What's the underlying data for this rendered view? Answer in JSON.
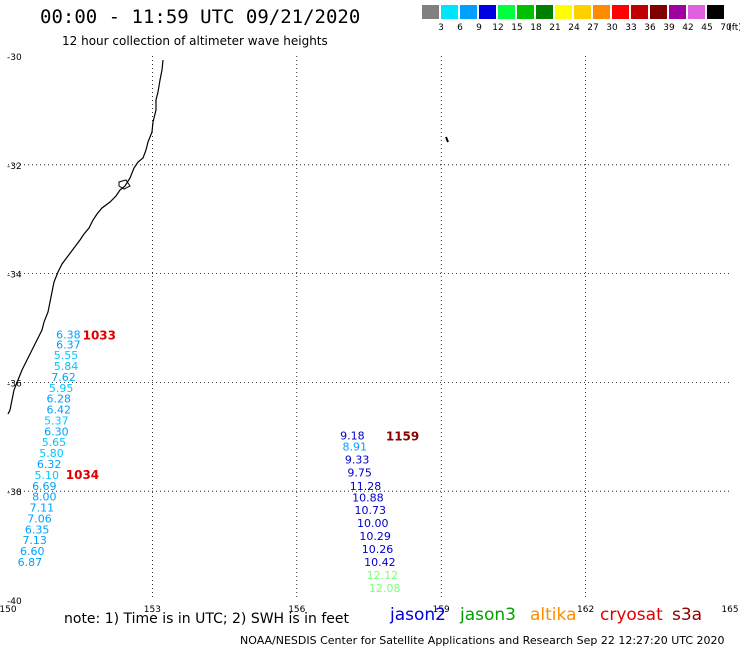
{
  "title": "00:00 - 11:59 UTC 09/21/2020",
  "subtitle": "12 hour collection of altimeter wave heights",
  "legend": {
    "unit": "(ft)",
    "bins": [
      {
        "label": "3",
        "color": "#808080"
      },
      {
        "label": "6",
        "color": "#00e5ff"
      },
      {
        "label": "9",
        "color": "#00a0ff"
      },
      {
        "label": "12",
        "color": "#0000e0"
      },
      {
        "label": "15",
        "color": "#00ff40"
      },
      {
        "label": "18",
        "color": "#00c000"
      },
      {
        "label": "21",
        "color": "#008000"
      },
      {
        "label": "24",
        "color": "#ffff00"
      },
      {
        "label": "27",
        "color": "#ffd000"
      },
      {
        "label": "30",
        "color": "#ff8c00"
      },
      {
        "label": "33",
        "color": "#ff0000"
      },
      {
        "label": "36",
        "color": "#c00000"
      },
      {
        "label": "39",
        "color": "#800000"
      },
      {
        "label": "42",
        "color": "#a000a0"
      },
      {
        "label": "45",
        "color": "#e060e0"
      },
      {
        "label": "70",
        "color": "#000000"
      }
    ]
  },
  "axes": {
    "lat_ticks": [
      "-30",
      "-32",
      "-34",
      "-36",
      "-38",
      "-40"
    ],
    "lon_ticks": [
      "150",
      "153",
      "156",
      "159",
      "162",
      "165"
    ]
  },
  "map": {
    "lon_min": 150,
    "lon_max": 165,
    "lat_top": -30,
    "lat_bottom": -40
  },
  "tracks": [
    {
      "name": "track-west",
      "time_labels": [
        {
          "text": "1033",
          "lon": 151.55,
          "lat": -35.12,
          "color": "#e00000"
        },
        {
          "text": "1034",
          "lon": 151.2,
          "lat": -37.68,
          "color": "#e00000"
        }
      ],
      "points": [
        {
          "v": "6.38",
          "lon": 151.0,
          "lat": -35.12,
          "color": "#00a0ff"
        },
        {
          "v": "6.37",
          "lon": 151.0,
          "lat": -35.3,
          "color": "#00a0ff"
        },
        {
          "v": "5.55",
          "lon": 150.95,
          "lat": -35.5,
          "color": "#00c8ff"
        },
        {
          "v": "5.84",
          "lon": 150.95,
          "lat": -35.7,
          "color": "#00c8ff"
        },
        {
          "v": "7.62",
          "lon": 150.9,
          "lat": -35.9,
          "color": "#00a0ff"
        },
        {
          "v": "5.95",
          "lon": 150.85,
          "lat": -36.1,
          "color": "#00c8ff"
        },
        {
          "v": "6.28",
          "lon": 150.8,
          "lat": -36.3,
          "color": "#00a0ff"
        },
        {
          "v": "6.42",
          "lon": 150.8,
          "lat": -36.5,
          "color": "#00a0ff"
        },
        {
          "v": "5.37",
          "lon": 150.75,
          "lat": -36.7,
          "color": "#00c8ff"
        },
        {
          "v": "6.30",
          "lon": 150.75,
          "lat": -36.9,
          "color": "#00a0ff"
        },
        {
          "v": "5.65",
          "lon": 150.7,
          "lat": -37.1,
          "color": "#00c8ff"
        },
        {
          "v": "5.80",
          "lon": 150.65,
          "lat": -37.3,
          "color": "#00c8ff"
        },
        {
          "v": "6.32",
          "lon": 150.6,
          "lat": -37.5,
          "color": "#00a0ff"
        },
        {
          "v": "5.10",
          "lon": 150.55,
          "lat": -37.7,
          "color": "#00c8ff"
        },
        {
          "v": "6.69",
          "lon": 150.5,
          "lat": -37.9,
          "color": "#00a0ff"
        },
        {
          "v": "8.00",
          "lon": 150.5,
          "lat": -38.1,
          "color": "#00a0ff"
        },
        {
          "v": "7.11",
          "lon": 150.45,
          "lat": -38.3,
          "color": "#00a0ff"
        },
        {
          "v": "7.06",
          "lon": 150.4,
          "lat": -38.5,
          "color": "#00a0ff"
        },
        {
          "v": "6.35",
          "lon": 150.35,
          "lat": -38.7,
          "color": "#00a0ff"
        },
        {
          "v": "7.13",
          "lon": 150.3,
          "lat": -38.9,
          "color": "#00a0ff"
        },
        {
          "v": "6.60",
          "lon": 150.25,
          "lat": -39.1,
          "color": "#00a0ff"
        },
        {
          "v": "6.87",
          "lon": 150.2,
          "lat": -39.3,
          "color": "#00a0ff"
        }
      ]
    },
    {
      "name": "track-east",
      "time_labels": [
        {
          "text": "1159",
          "lon": 157.85,
          "lat": -36.98,
          "color": "#8b0000"
        }
      ],
      "points": [
        {
          "v": "9.18",
          "lon": 156.9,
          "lat": -36.98,
          "color": "#0000c8"
        },
        {
          "v": "8.91",
          "lon": 156.95,
          "lat": -37.18,
          "color": "#00a0ff"
        },
        {
          "v": "9.33",
          "lon": 157.0,
          "lat": -37.42,
          "color": "#0000c8"
        },
        {
          "v": "9.75",
          "lon": 157.05,
          "lat": -37.66,
          "color": "#0000c8"
        },
        {
          "v": "11.28",
          "lon": 157.1,
          "lat": -37.9,
          "color": "#0000c8"
        },
        {
          "v": "10.88",
          "lon": 157.15,
          "lat": -38.12,
          "color": "#0000c8"
        },
        {
          "v": "10.73",
          "lon": 157.2,
          "lat": -38.35,
          "color": "#0000c8"
        },
        {
          "v": "10.00",
          "lon": 157.25,
          "lat": -38.58,
          "color": "#0000c8"
        },
        {
          "v": "10.29",
          "lon": 157.3,
          "lat": -38.82,
          "color": "#0000c8"
        },
        {
          "v": "10.26",
          "lon": 157.35,
          "lat": -39.06,
          "color": "#0000c8"
        },
        {
          "v": "10.42",
          "lon": 157.4,
          "lat": -39.3,
          "color": "#0000c8"
        },
        {
          "v": "12.12",
          "lon": 157.45,
          "lat": -39.54,
          "color": "#7cff7c"
        },
        {
          "v": "12.08",
          "lon": 157.5,
          "lat": -39.78,
          "color": "#7cff7c"
        }
      ]
    }
  ],
  "note": "note: 1) Time is in UTC; 2) SWH is in feet",
  "satellites": [
    {
      "label": "jason2",
      "color": "#0000e0"
    },
    {
      "label": "jason3",
      "color": "#00a000"
    },
    {
      "label": "altika",
      "color": "#ff8c00"
    },
    {
      "label": "cryosat",
      "color": "#e00000"
    },
    {
      "label": "s3a",
      "color": "#8b0000"
    }
  ],
  "footer": "NOAA/NESDIS Center for Satellite Applications and Research   Sep 22 12:27:20 UTC 2020"
}
